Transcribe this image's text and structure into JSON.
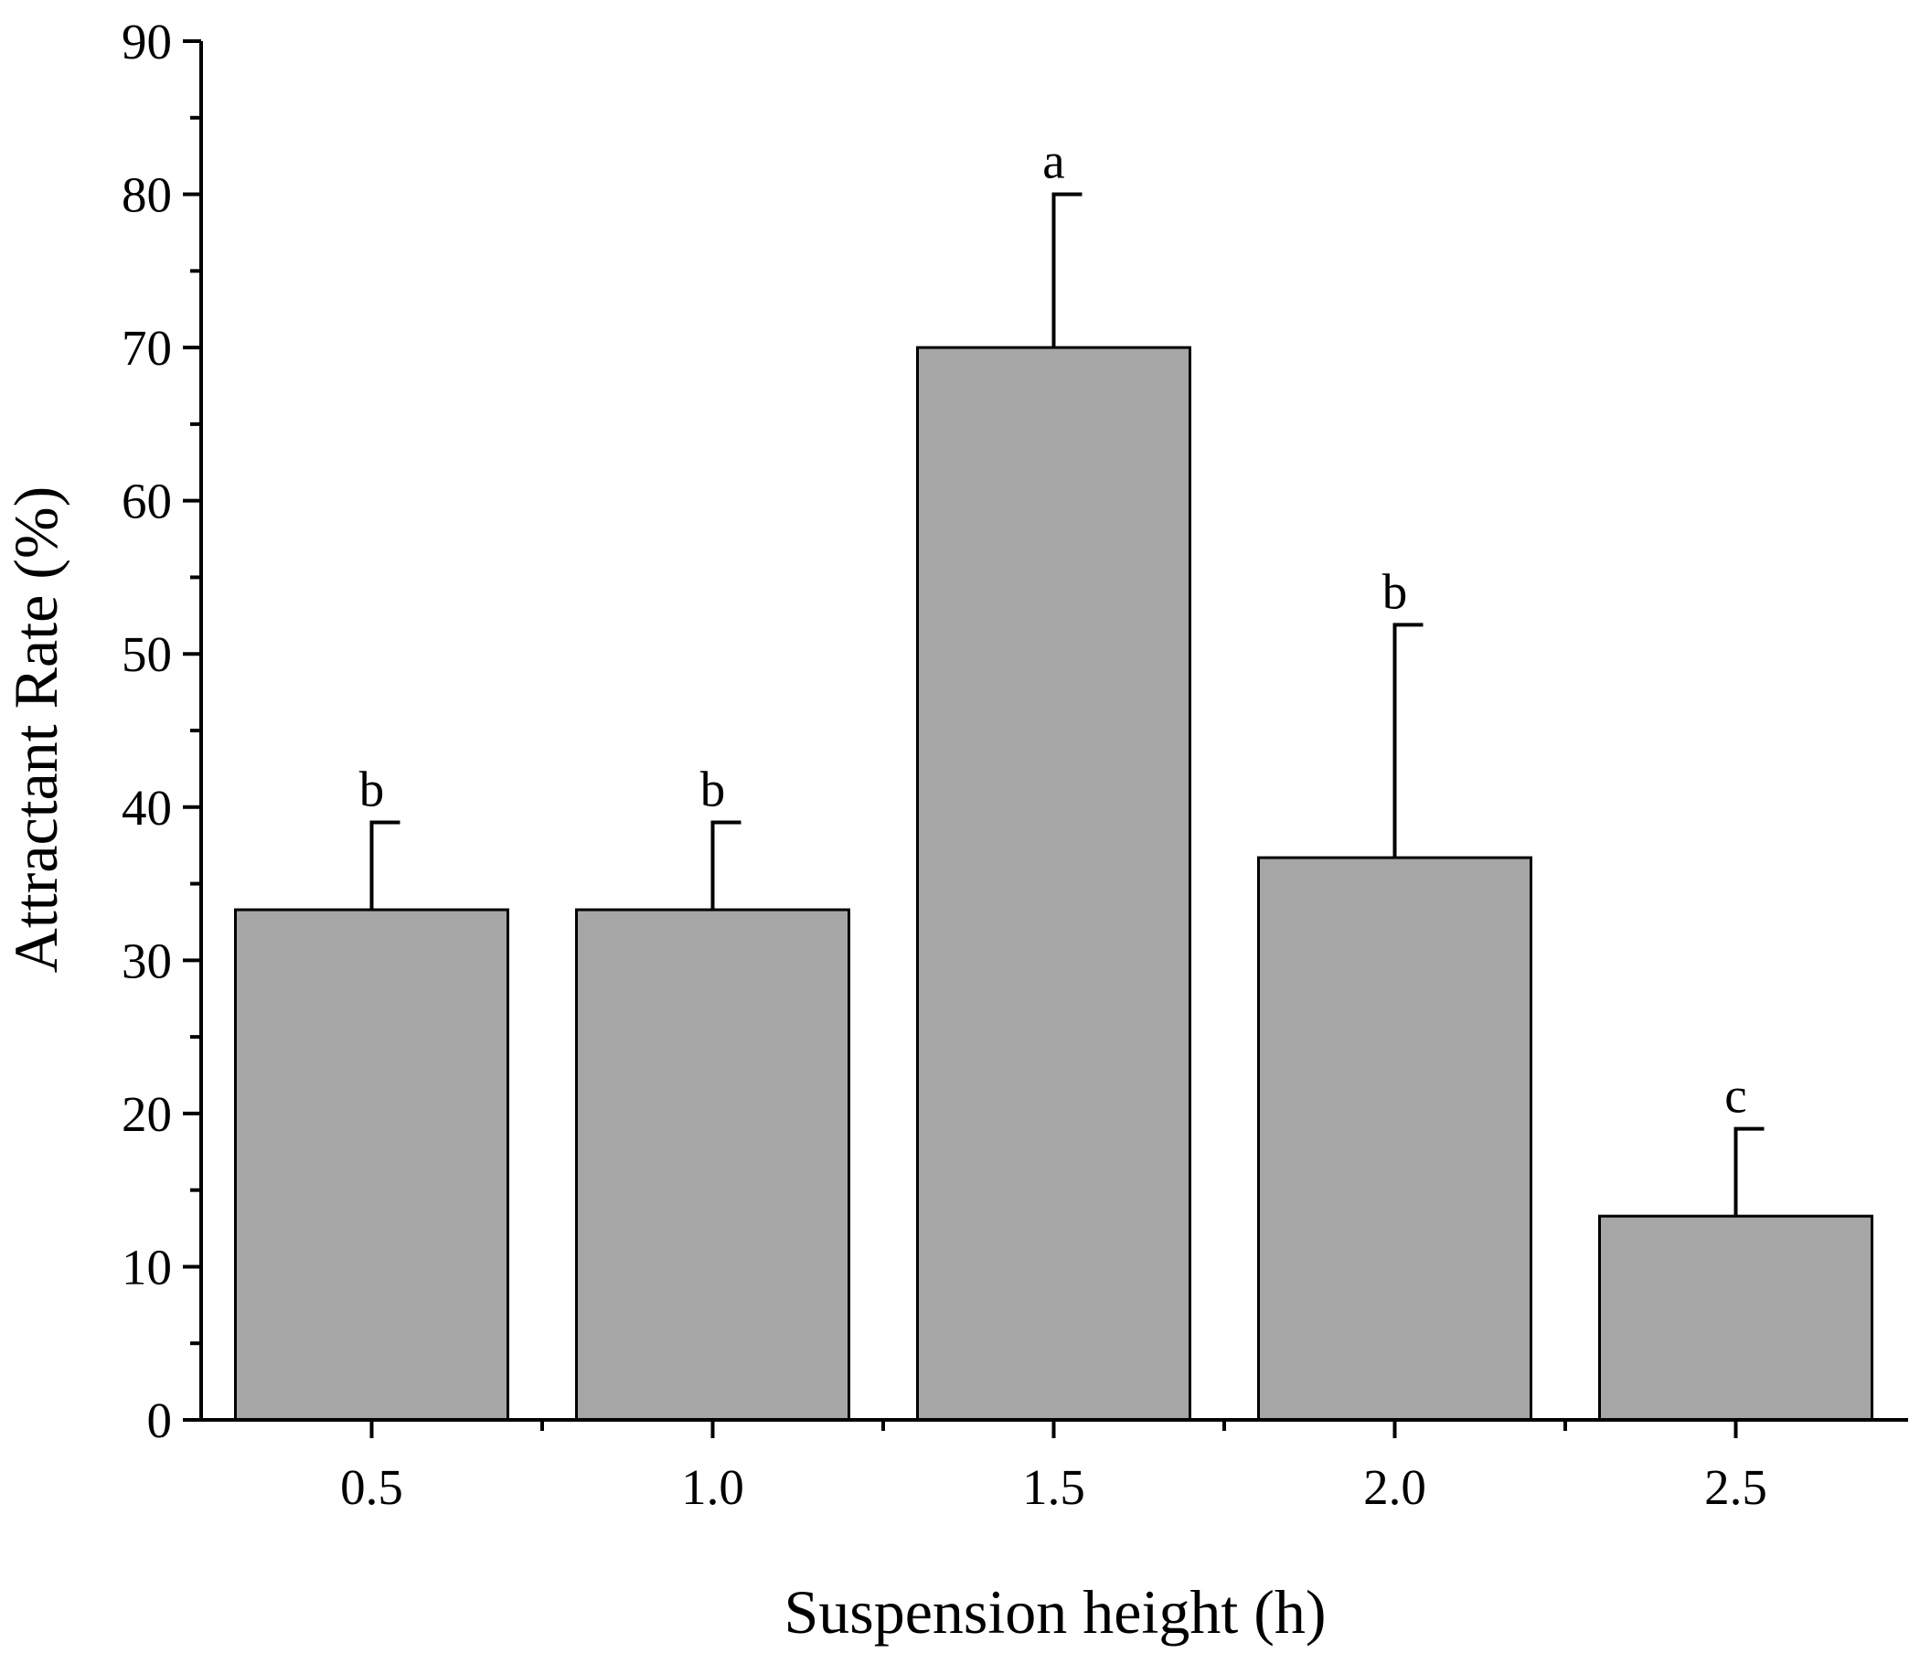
{
  "chart_data": {
    "type": "bar",
    "title": "",
    "xlabel": "Suspension height (h)",
    "ylabel": "Attractant Rate (%)",
    "categories": [
      "0.5",
      "1.0",
      "1.5",
      "2.0",
      "2.5"
    ],
    "values": [
      33.3,
      33.3,
      70.0,
      36.7,
      13.3
    ],
    "errors": [
      5.7,
      5.7,
      10.0,
      15.2,
      5.7
    ],
    "significance_labels": [
      "b",
      "b",
      "a",
      "b",
      "c"
    ],
    "ylim": [
      0,
      90
    ],
    "yticks": [
      "0",
      "10",
      "20",
      "30",
      "40",
      "50",
      "60",
      "70",
      "80",
      "90"
    ],
    "y_minor_step": 5,
    "grid": false,
    "legend": "none",
    "colors": {
      "bar_fill": "#a6a6a6",
      "bar_stroke": "#000000",
      "axis": "#000000",
      "background": "#ffffff"
    }
  }
}
